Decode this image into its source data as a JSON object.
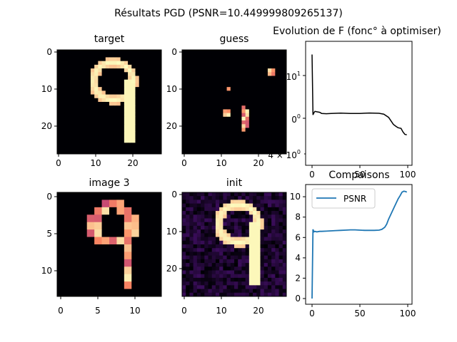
{
  "figure": {
    "suptitle": "Résultats PGD  (PSNR=10.449999809265137)"
  },
  "colormap": "magma",
  "panels": {
    "target": {
      "title": "target",
      "xticks": [
        "0",
        "10",
        "20"
      ],
      "yticks": [
        "0",
        "10",
        "20"
      ],
      "pixel_grid_size": 28
    },
    "guess": {
      "title": "guess",
      "xticks": [
        "0",
        "10",
        "20"
      ],
      "yticks": [
        "0",
        "10",
        "20"
      ],
      "pixel_grid_size": 28
    },
    "image3": {
      "title": "image 3",
      "xticks": [
        "0",
        "5",
        "10"
      ],
      "yticks": [
        "0",
        "5",
        "10"
      ],
      "pixel_grid_size": 14
    },
    "init": {
      "title": "init",
      "xticks": [
        "0",
        "10",
        "20"
      ],
      "yticks": [
        "0",
        "10",
        "20"
      ],
      "pixel_grid_size": 28
    }
  },
  "chart_data": [
    {
      "type": "line",
      "title": "Evolution de F (fonc° à optimiser)",
      "xlabel": "",
      "ylabel": "",
      "yscale": "log",
      "xticks": [
        "0",
        "50",
        "100"
      ],
      "yticks": [
        "10",
        "0",
        "4 × 10"
      ],
      "ytick_exponents": [
        "1",
        "0",
        "0"
      ],
      "color": "#000000",
      "x": [
        0,
        1,
        2,
        3,
        5,
        8,
        10,
        15,
        20,
        30,
        40,
        50,
        60,
        70,
        75,
        80,
        85,
        88,
        90,
        93,
        95,
        97,
        99
      ],
      "y": [
        31.0,
        1.2,
        1.35,
        1.45,
        1.42,
        1.38,
        1.3,
        1.28,
        1.3,
        1.32,
        1.3,
        1.3,
        1.33,
        1.31,
        1.25,
        1.05,
        0.72,
        0.64,
        0.6,
        0.58,
        0.48,
        0.42,
        0.41
      ]
    },
    {
      "type": "line",
      "title": "Compaisons",
      "xlabel": "",
      "ylabel": "",
      "xticks": [
        "0",
        "50",
        "100"
      ],
      "yticks": [
        "0",
        "2",
        "4",
        "6",
        "8",
        "10"
      ],
      "ylim": [
        -0.5,
        11
      ],
      "legend": "top-left",
      "series": [
        {
          "name": "PSNR",
          "color": "#1f77b4",
          "x": [
            0,
            1,
            2,
            3,
            5,
            8,
            10,
            15,
            20,
            25,
            30,
            35,
            40,
            45,
            50,
            55,
            60,
            65,
            70,
            73,
            76,
            78,
            80,
            82,
            85,
            88,
            90,
            92,
            94,
            96,
            98,
            99
          ],
          "values": [
            0.0,
            6.8,
            6.55,
            6.6,
            6.55,
            6.6,
            6.6,
            6.62,
            6.65,
            6.68,
            6.7,
            6.72,
            6.75,
            6.75,
            6.72,
            6.7,
            6.7,
            6.7,
            6.72,
            6.8,
            7.0,
            7.3,
            7.8,
            8.2,
            8.8,
            9.4,
            9.8,
            10.1,
            10.45,
            10.55,
            10.5,
            10.45
          ]
        }
      ]
    }
  ]
}
